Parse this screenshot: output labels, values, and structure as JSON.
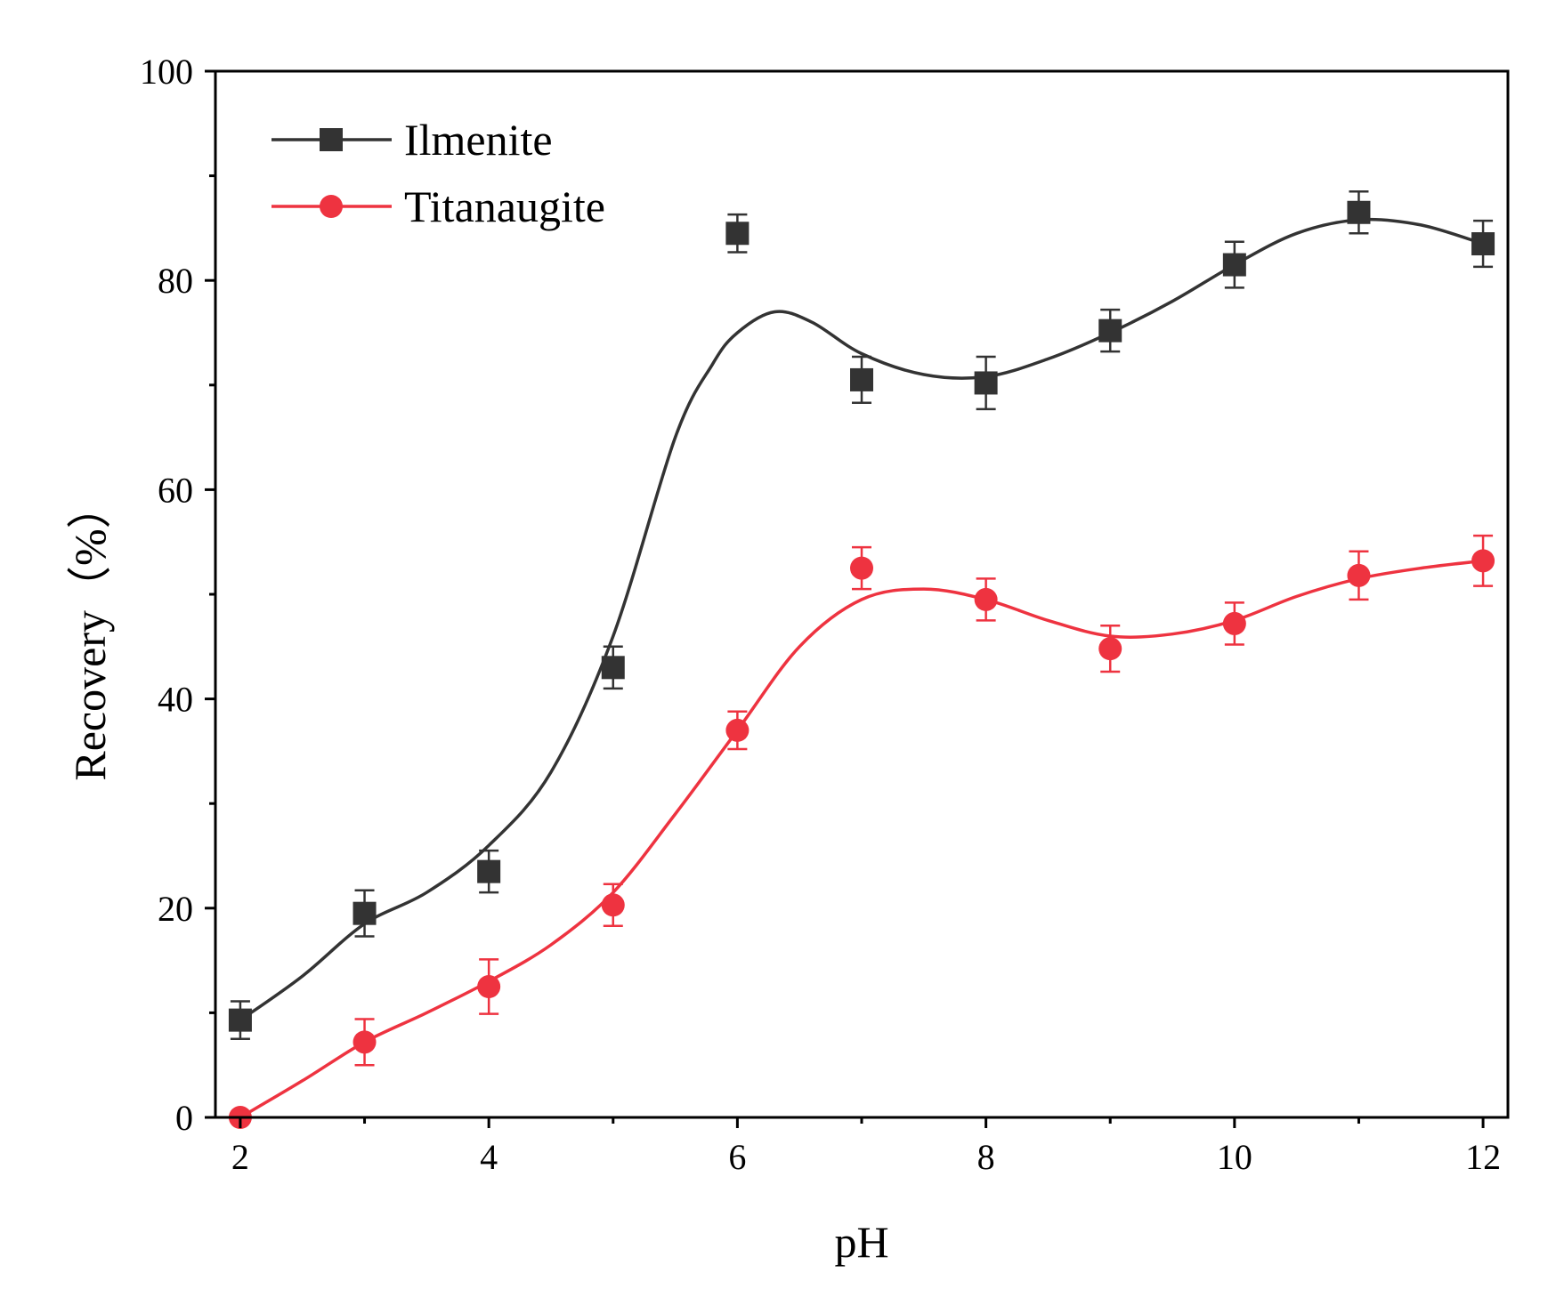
{
  "chart_data": {
    "type": "line",
    "title": "",
    "xlabel": "pH",
    "ylabel": "Recovery（%）",
    "xlim": [
      1.8,
      12.2
    ],
    "ylim": [
      0,
      100
    ],
    "xticks": [
      "2",
      "4",
      "6",
      "8",
      "10",
      "12"
    ],
    "yticks": [
      "0",
      "20",
      "40",
      "60",
      "80",
      "100"
    ],
    "legend_position": "top-left",
    "x": [
      2,
      3,
      4,
      5,
      6,
      7,
      8,
      9,
      10,
      11,
      12
    ],
    "series": [
      {
        "name": "Ilmenite",
        "color": "#333333",
        "marker": "square",
        "values": [
          9.3,
          19.5,
          23.5,
          43.0,
          84.5,
          70.5,
          70.2,
          75.2,
          81.5,
          86.5,
          83.5
        ],
        "errors": [
          1.8,
          2.2,
          2.0,
          2.0,
          1.8,
          2.2,
          2.5,
          2.0,
          2.2,
          2.0,
          2.2
        ],
        "fit": [
          [
            2,
            9.3
          ],
          [
            2.5,
            13.5
          ],
          [
            3,
            18.5
          ],
          [
            3.5,
            21.5
          ],
          [
            4,
            26
          ],
          [
            4.5,
            33
          ],
          [
            5,
            46
          ],
          [
            5.5,
            65
          ],
          [
            5.8,
            72
          ],
          [
            6,
            75
          ],
          [
            6.3,
            77
          ],
          [
            6.6,
            76
          ],
          [
            7,
            73
          ],
          [
            7.5,
            71
          ],
          [
            8,
            70.8
          ],
          [
            8.5,
            72.5
          ],
          [
            9,
            75
          ],
          [
            9.5,
            78
          ],
          [
            10,
            81.5
          ],
          [
            10.5,
            84.5
          ],
          [
            11,
            85.8
          ],
          [
            11.5,
            85.3
          ],
          [
            12,
            83.5
          ]
        ]
      },
      {
        "name": "Titanaugite",
        "color": "#ee3340",
        "marker": "circle",
        "values": [
          0.0,
          7.2,
          12.5,
          20.3,
          37.0,
          52.5,
          49.5,
          44.8,
          47.2,
          51.8,
          53.2
        ],
        "errors": [
          0.0,
          2.2,
          2.6,
          2.0,
          1.8,
          2.0,
          2.0,
          2.2,
          2.0,
          2.3,
          2.4
        ],
        "fit": [
          [
            2,
            0
          ],
          [
            2.5,
            3.5
          ],
          [
            3,
            7.2
          ],
          [
            3.5,
            10
          ],
          [
            4,
            13
          ],
          [
            4.5,
            16.5
          ],
          [
            5,
            21.5
          ],
          [
            5.5,
            29
          ],
          [
            6,
            37
          ],
          [
            6.5,
            45
          ],
          [
            7,
            49.5
          ],
          [
            7.5,
            50.5
          ],
          [
            8,
            49.5
          ],
          [
            8.5,
            47.5
          ],
          [
            9,
            46
          ],
          [
            9.5,
            46.2
          ],
          [
            10,
            47.5
          ],
          [
            10.5,
            49.8
          ],
          [
            11,
            51.5
          ],
          [
            11.5,
            52.5
          ],
          [
            12,
            53.2
          ]
        ]
      }
    ]
  }
}
